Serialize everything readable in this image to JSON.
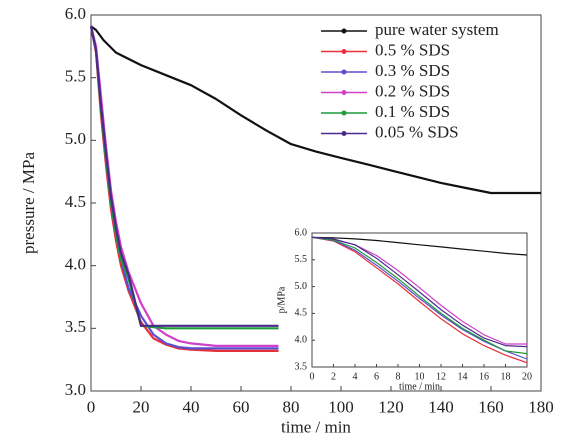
{
  "chart_data": [
    {
      "type": "line",
      "x_label": "time / min",
      "y_label": "pressure / MPa",
      "xlim": [
        0,
        180
      ],
      "xticks": [
        0,
        20,
        40,
        60,
        80,
        100,
        120,
        140,
        160,
        180
      ],
      "ylim": [
        3.0,
        6.0
      ],
      "yticks": [
        {
          "value": 3.0,
          "label": "3.0"
        },
        3.5,
        {
          "value": 4.0,
          "label": "4.0"
        },
        4.5,
        {
          "value": 5.0,
          "label": "5.0"
        },
        5.5,
        {
          "value": 6.0,
          "label": "6.0"
        }
      ],
      "legend": "upper right",
      "series": [
        {
          "name": "pure water system",
          "color": "#111111",
          "x": [
            0,
            2,
            5,
            10,
            20,
            30,
            40,
            50,
            60,
            70,
            80,
            90,
            100,
            110,
            120,
            130,
            140,
            150,
            160,
            170,
            180
          ],
          "values": [
            5.91,
            5.88,
            5.8,
            5.7,
            5.6,
            5.52,
            5.44,
            5.33,
            5.2,
            5.08,
            4.97,
            4.91,
            4.86,
            4.81,
            4.76,
            4.71,
            4.66,
            4.62,
            4.58,
            4.58,
            4.58
          ]
        },
        {
          "name": "0.5 % SDS",
          "color": "#e8303a",
          "x": [
            0,
            2,
            4,
            6,
            8,
            10,
            12,
            15,
            20,
            25,
            30,
            35,
            40,
            50,
            60,
            75
          ],
          "values": [
            5.91,
            5.7,
            5.2,
            4.8,
            4.45,
            4.2,
            4.0,
            3.8,
            3.55,
            3.42,
            3.37,
            3.34,
            3.33,
            3.32,
            3.32,
            3.32
          ]
        },
        {
          "name": "0.3 % SDS",
          "color": "#5a4fcf",
          "x": [
            0,
            2,
            4,
            6,
            8,
            10,
            12,
            15,
            20,
            25,
            30,
            35,
            40,
            50,
            60,
            75
          ],
          "values": [
            5.91,
            5.72,
            5.25,
            4.85,
            4.5,
            4.25,
            4.05,
            3.82,
            3.6,
            3.45,
            3.38,
            3.35,
            3.34,
            3.34,
            3.34,
            3.34
          ]
        },
        {
          "name": "0.2 % SDS",
          "color": "#d040c8",
          "x": [
            0,
            2,
            4,
            6,
            8,
            10,
            12,
            15,
            20,
            25,
            30,
            35,
            40,
            50,
            60,
            75
          ],
          "values": [
            5.91,
            5.75,
            5.35,
            4.95,
            4.6,
            4.35,
            4.15,
            3.95,
            3.7,
            3.52,
            3.45,
            3.4,
            3.38,
            3.36,
            3.36,
            3.36
          ]
        },
        {
          "name": "0.1 % SDS",
          "color": "#1f9a3a",
          "x": [
            0,
            2,
            4,
            6,
            8,
            10,
            12,
            15,
            20,
            25,
            30,
            35,
            40,
            50,
            60,
            75
          ],
          "values": [
            5.91,
            5.72,
            5.25,
            4.85,
            4.5,
            4.25,
            4.05,
            3.9,
            3.52,
            3.51,
            3.5,
            3.5,
            3.5,
            3.5,
            3.5,
            3.5
          ]
        },
        {
          "name": "0.05 % SDS",
          "color": "#4b2a8c",
          "x": [
            0,
            2,
            4,
            6,
            8,
            10,
            12,
            15,
            20,
            25,
            30,
            35,
            40,
            50,
            60,
            75
          ],
          "values": [
            5.91,
            5.72,
            5.28,
            4.9,
            4.55,
            4.3,
            4.1,
            3.93,
            3.52,
            3.52,
            3.52,
            3.52,
            3.52,
            3.52,
            3.52,
            3.52
          ]
        }
      ]
    },
    {
      "type": "line",
      "x_label": "time / min",
      "y_label": "p/MPa",
      "xlim": [
        0,
        20
      ],
      "xticks": [
        0,
        2,
        4,
        6,
        8,
        10,
        12,
        14,
        16,
        18,
        20
      ],
      "ylim": [
        3.5,
        6.0
      ],
      "yticks": [
        3.5,
        {
          "value": 4.0,
          "label": "4.0"
        },
        4.5,
        {
          "value": 5.0,
          "label": "5.0"
        },
        5.5,
        {
          "value": 6.0,
          "label": "6.0"
        }
      ],
      "series": [
        {
          "color": "#111111",
          "x": [
            0,
            2,
            4,
            6,
            8,
            10,
            12,
            14,
            16,
            18,
            20
          ],
          "values": [
            5.92,
            5.91,
            5.89,
            5.86,
            5.82,
            5.78,
            5.74,
            5.7,
            5.66,
            5.62,
            5.59
          ]
        },
        {
          "color": "#e8303a",
          "x": [
            0,
            2,
            4,
            6,
            8,
            10,
            12,
            14,
            16,
            18,
            20
          ],
          "values": [
            5.92,
            5.85,
            5.65,
            5.35,
            5.05,
            4.72,
            4.4,
            4.12,
            3.9,
            3.72,
            3.58
          ]
        },
        {
          "color": "#5a4fcf",
          "x": [
            0,
            2,
            4,
            6,
            8,
            10,
            12,
            14,
            16,
            18,
            20
          ],
          "values": [
            5.92,
            5.86,
            5.68,
            5.4,
            5.1,
            4.78,
            4.47,
            4.2,
            3.98,
            3.8,
            3.65
          ]
        },
        {
          "color": "#d040c8",
          "x": [
            0,
            2,
            4,
            6,
            8,
            10,
            12,
            14,
            16,
            18,
            20
          ],
          "values": [
            5.92,
            5.88,
            5.78,
            5.58,
            5.3,
            4.98,
            4.65,
            4.35,
            4.1,
            3.93,
            3.93
          ]
        },
        {
          "color": "#1f9a3a",
          "x": [
            0,
            2,
            4,
            6,
            8,
            10,
            12,
            14,
            16,
            18,
            20
          ],
          "values": [
            5.92,
            5.87,
            5.72,
            5.45,
            5.15,
            4.82,
            4.5,
            4.22,
            4.0,
            3.8,
            3.75
          ]
        },
        {
          "color": "#4b2a8c",
          "x": [
            0,
            2,
            4,
            6,
            8,
            10,
            12,
            14,
            16,
            18,
            20
          ],
          "values": [
            5.92,
            5.89,
            5.78,
            5.53,
            5.22,
            4.9,
            4.57,
            4.28,
            4.04,
            3.9,
            3.88
          ]
        }
      ]
    }
  ]
}
